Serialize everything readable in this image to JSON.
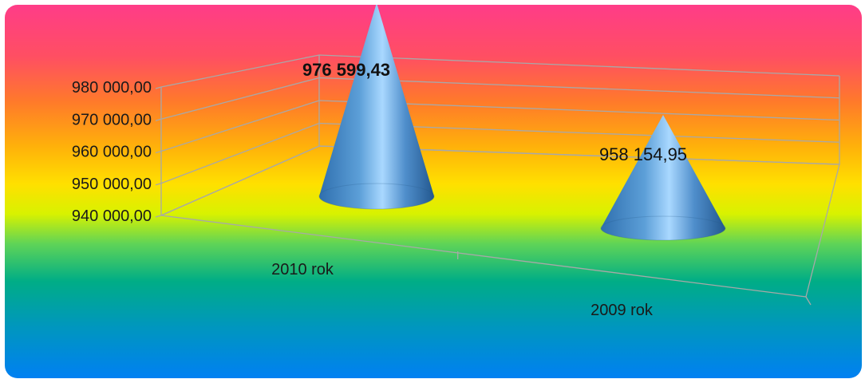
{
  "chart_data": {
    "type": "bar",
    "subtype": "3d-cone",
    "categories": [
      "2010 rok",
      "2009 rok"
    ],
    "values": [
      976599.43,
      958154.95
    ],
    "data_labels": [
      "976 599,43",
      "958 154,95"
    ],
    "yticks": [
      "940 000,00",
      "950 000,00",
      "960 000,00",
      "970 000,00",
      "980 000,00"
    ],
    "ylim": [
      940000,
      980000
    ],
    "grid": true,
    "colors": {
      "cone": "#4f93cf",
      "background_gradient": [
        "#ff3c88",
        "#ff5e3a",
        "#ff9f14",
        "#ffd500",
        "#e5f500",
        "#49d15d",
        "#00a98a",
        "#0096c0",
        "#007ff0"
      ]
    }
  }
}
